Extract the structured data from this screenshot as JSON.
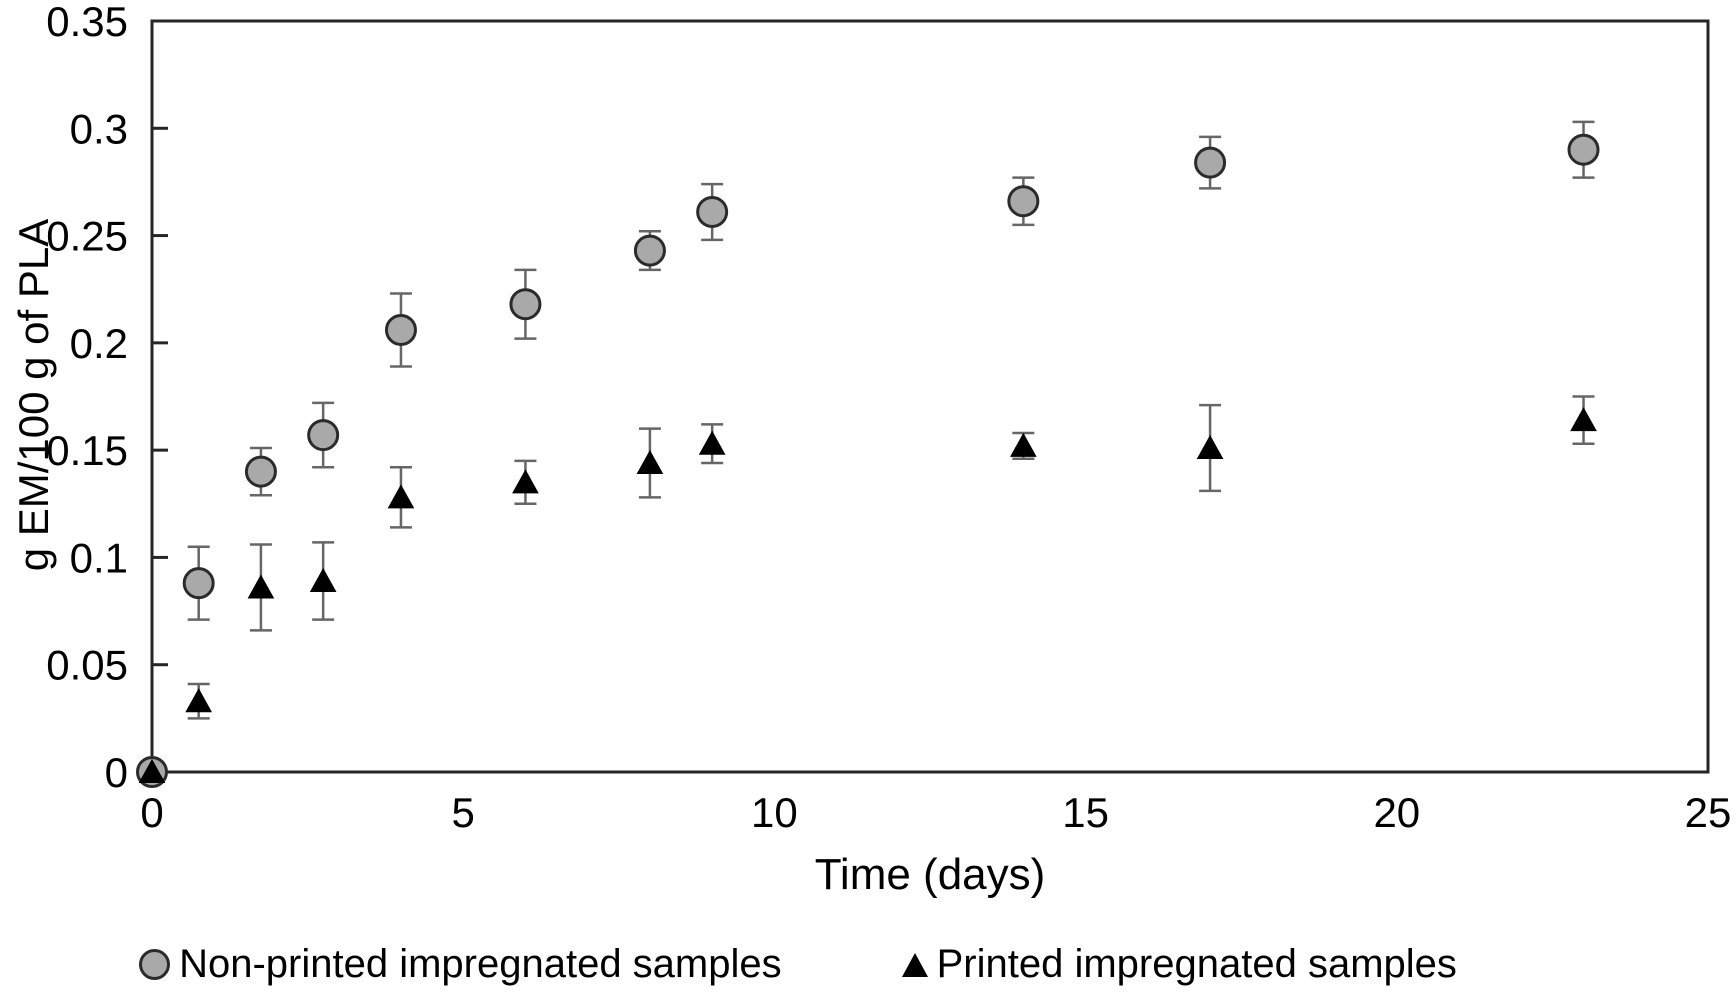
{
  "chart_data": {
    "type": "scatter",
    "title": "",
    "xlabel": "Time (days)",
    "ylabel": "g EM/100 g of PLA",
    "xlim": [
      0,
      25
    ],
    "ylim": [
      0,
      0.35
    ],
    "x_ticks": [
      0,
      5,
      10,
      15,
      20,
      25
    ],
    "x_tick_labels": [
      "0",
      "5",
      "10",
      "15",
      "20",
      "25"
    ],
    "y_ticks": [
      0,
      0.05,
      0.1,
      0.15,
      0.2,
      0.25,
      0.3,
      0.35
    ],
    "y_tick_labels": [
      "0",
      "0.05",
      "0.1",
      "0.15",
      "0.2",
      "0.25",
      "0.3",
      "0.35"
    ],
    "grid": false,
    "legend_position": "bottom",
    "error_bars": true,
    "axis_color": "#262626",
    "error_bar_color": "#666666",
    "text_color": "#000000",
    "background": "#ffffff",
    "series": [
      {
        "name": "Non-printed impregnated samples",
        "marker": "circle",
        "marker_fill": "#a9a9a9",
        "marker_stroke": "#2b2b2b",
        "x": [
          0,
          0.75,
          1.75,
          2.75,
          4,
          6,
          8,
          9,
          14,
          17,
          23
        ],
        "y": [
          0,
          0.088,
          0.14,
          0.157,
          0.206,
          0.218,
          0.243,
          0.261,
          0.266,
          0.284,
          0.29
        ],
        "yerr": [
          0,
          0.017,
          0.011,
          0.015,
          0.017,
          0.016,
          0.009,
          0.013,
          0.011,
          0.012,
          0.013
        ]
      },
      {
        "name": "Printed impregnated samples",
        "marker": "triangle",
        "marker_fill": "#000000",
        "marker_stroke": "#000000",
        "x": [
          0,
          0.75,
          1.75,
          2.75,
          4,
          6,
          8,
          9,
          14,
          17,
          23
        ],
        "y": [
          0,
          0.033,
          0.086,
          0.089,
          0.128,
          0.135,
          0.144,
          0.153,
          0.152,
          0.151,
          0.164
        ],
        "yerr": [
          0,
          0.008,
          0.02,
          0.018,
          0.014,
          0.01,
          0.016,
          0.009,
          0.006,
          0.02,
          0.011
        ]
      }
    ]
  }
}
